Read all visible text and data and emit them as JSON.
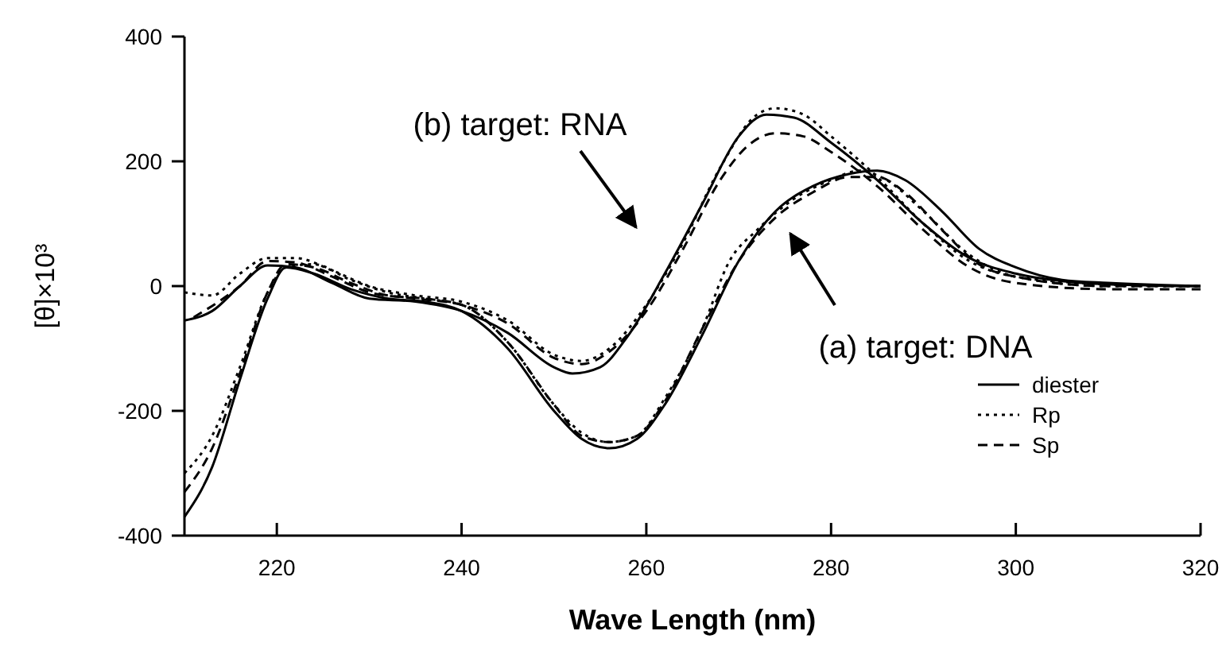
{
  "chart_data": {
    "type": "line",
    "xlabel": "Wave Length (nm)",
    "ylabel": "[θ]×10³",
    "xlim": [
      210,
      320
    ],
    "xticks": [
      220,
      240,
      260,
      280,
      300,
      320
    ],
    "ylim": [
      -400,
      400
    ],
    "yticks": [
      -400,
      -200,
      0,
      200,
      400
    ],
    "grid": false,
    "legend": "bottom right",
    "marker": "none",
    "series": [
      {
        "name": "diester",
        "color": "#000000",
        "line_style": "solid",
        "x": [
          210,
          213,
          216,
          219,
          221,
          224,
          228,
          232,
          236,
          240,
          245,
          250,
          253,
          256,
          259,
          262,
          266,
          270,
          274,
          278,
          282,
          285,
          288,
          292,
          296,
          300,
          305,
          310,
          320
        ],
        "values": [
          -370,
          -290,
          -150,
          -20,
          30,
          20,
          -5,
          -20,
          -25,
          -40,
          -100,
          -200,
          -245,
          -260,
          -245,
          -190,
          -80,
          40,
          120,
          160,
          180,
          185,
          170,
          120,
          60,
          30,
          10,
          5,
          0
        ]
      },
      {
        "name": "Rp",
        "color": "#000000",
        "line_style": "dotted",
        "x": [
          210,
          213,
          216,
          219,
          221,
          224,
          228,
          232,
          236,
          240,
          245,
          250,
          253,
          256,
          259,
          262,
          266,
          269,
          272,
          276,
          280,
          283,
          286,
          290,
          295,
          300,
          310,
          320
        ],
        "values": [
          -300,
          -240,
          -130,
          -10,
          30,
          35,
          10,
          -10,
          -20,
          -30,
          -90,
          -190,
          -235,
          -250,
          -240,
          -180,
          -70,
          40,
          90,
          140,
          170,
          185,
          170,
          120,
          50,
          15,
          0,
          0
        ]
      },
      {
        "name": "Sp",
        "color": "#000000",
        "line_style": "dashed",
        "x": [
          210,
          213,
          216,
          219,
          221,
          224,
          228,
          232,
          236,
          240,
          245,
          250,
          253,
          256,
          259,
          262,
          266,
          270,
          274,
          278,
          282,
          285,
          288,
          292,
          296,
          300,
          310,
          320
        ],
        "values": [
          -330,
          -260,
          -140,
          -10,
          35,
          30,
          5,
          -15,
          -20,
          -30,
          -90,
          -190,
          -240,
          -250,
          -240,
          -185,
          -70,
          40,
          110,
          150,
          175,
          175,
          150,
          90,
          35,
          15,
          0,
          0
        ]
      },
      {
        "color": "#000000",
        "line_style": "solid",
        "x": [
          210,
          213,
          216,
          219,
          222,
          226,
          230,
          235,
          240,
          245,
          250,
          252,
          255,
          258,
          262,
          266,
          270,
          273,
          276,
          280,
          285,
          290,
          295,
          300,
          305,
          310,
          320
        ],
        "values": [
          -55,
          -40,
          0,
          33,
          30,
          5,
          -20,
          -25,
          -40,
          -75,
          -130,
          -140,
          -130,
          -80,
          20,
          130,
          240,
          275,
          270,
          230,
          170,
          100,
          45,
          20,
          8,
          3,
          0
        ]
      },
      {
        "color": "#000000",
        "line_style": "dotted",
        "x": [
          210,
          213,
          216,
          219,
          222,
          226,
          230,
          235,
          240,
          245,
          250,
          253,
          256,
          260,
          264,
          268,
          272,
          274,
          277,
          280,
          285,
          290,
          295,
          300,
          310,
          320
        ],
        "values": [
          -10,
          -15,
          20,
          45,
          45,
          25,
          0,
          -15,
          -25,
          -55,
          -110,
          -120,
          -100,
          -30,
          70,
          190,
          275,
          285,
          275,
          240,
          175,
          100,
          40,
          15,
          3,
          0
        ]
      },
      {
        "color": "#000000",
        "line_style": "dashed",
        "x": [
          211,
          216,
          219,
          222,
          226,
          230,
          235,
          240,
          245,
          250,
          253,
          256,
          260,
          264,
          268,
          271,
          274,
          277,
          280,
          285,
          290,
          295,
          300,
          310,
          320
        ],
        "values": [
          -50,
          0,
          40,
          38,
          15,
          -10,
          -20,
          -30,
          -60,
          -115,
          -125,
          -105,
          -40,
          60,
          170,
          225,
          245,
          240,
          215,
          160,
          90,
          30,
          5,
          -5,
          -5
        ]
      }
    ],
    "annotations": [
      "(b) target: RNA",
      "(a) target: DNA"
    ]
  }
}
